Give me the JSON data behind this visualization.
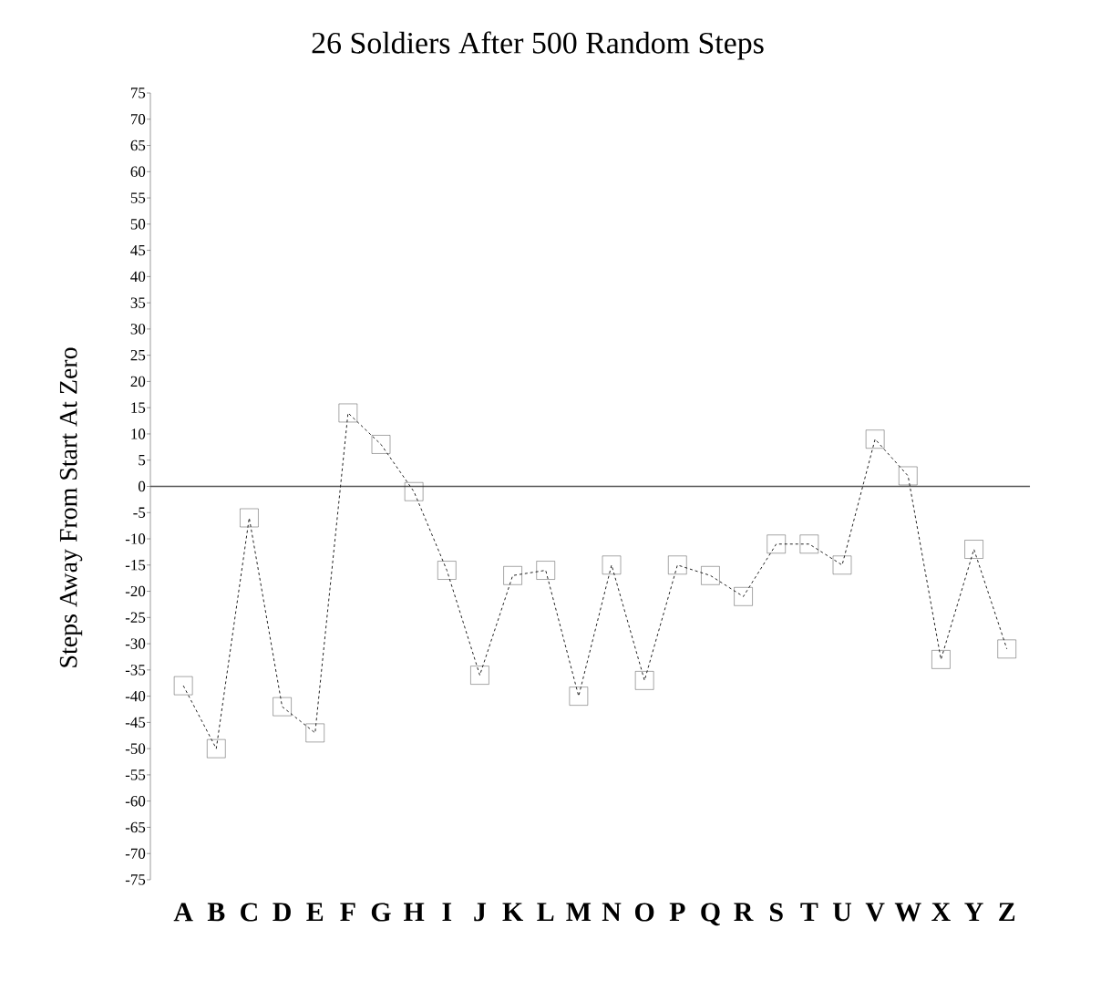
{
  "chart_data": {
    "type": "line",
    "title": "26 Soldiers After 500 Random Steps",
    "ylabel": "Steps Away From Start At Zero",
    "categories": [
      "A",
      "B",
      "C",
      "D",
      "E",
      "F",
      "G",
      "H",
      "I",
      "J",
      "K",
      "L",
      "M",
      "N",
      "O",
      "P",
      "Q",
      "R",
      "S",
      "T",
      "U",
      "V",
      "W",
      "X",
      "Y",
      "Z"
    ],
    "values": [
      -38,
      -50,
      -6,
      -42,
      -47,
      14,
      8,
      -1,
      -16,
      -36,
      -17,
      -16,
      -40,
      -15,
      -37,
      -15,
      -17,
      -21,
      -11,
      -11,
      -15,
      9,
      2,
      -33,
      -12,
      -31
    ],
    "color": "#222222",
    "ylim": [
      -75,
      75
    ],
    "yticks": [
      -75,
      -70,
      -65,
      -60,
      -55,
      -50,
      -45,
      -40,
      -35,
      -30,
      -25,
      -20,
      -15,
      -10,
      -5,
      0,
      5,
      10,
      15,
      20,
      25,
      30,
      35,
      40,
      45,
      50,
      55,
      60,
      65,
      70,
      75
    ],
    "ref_lines": [
      {
        "axis": "y",
        "value": 0,
        "color": "#555555",
        "line_style": "solid"
      }
    ],
    "marker": "square",
    "line_style": "dashed"
  }
}
